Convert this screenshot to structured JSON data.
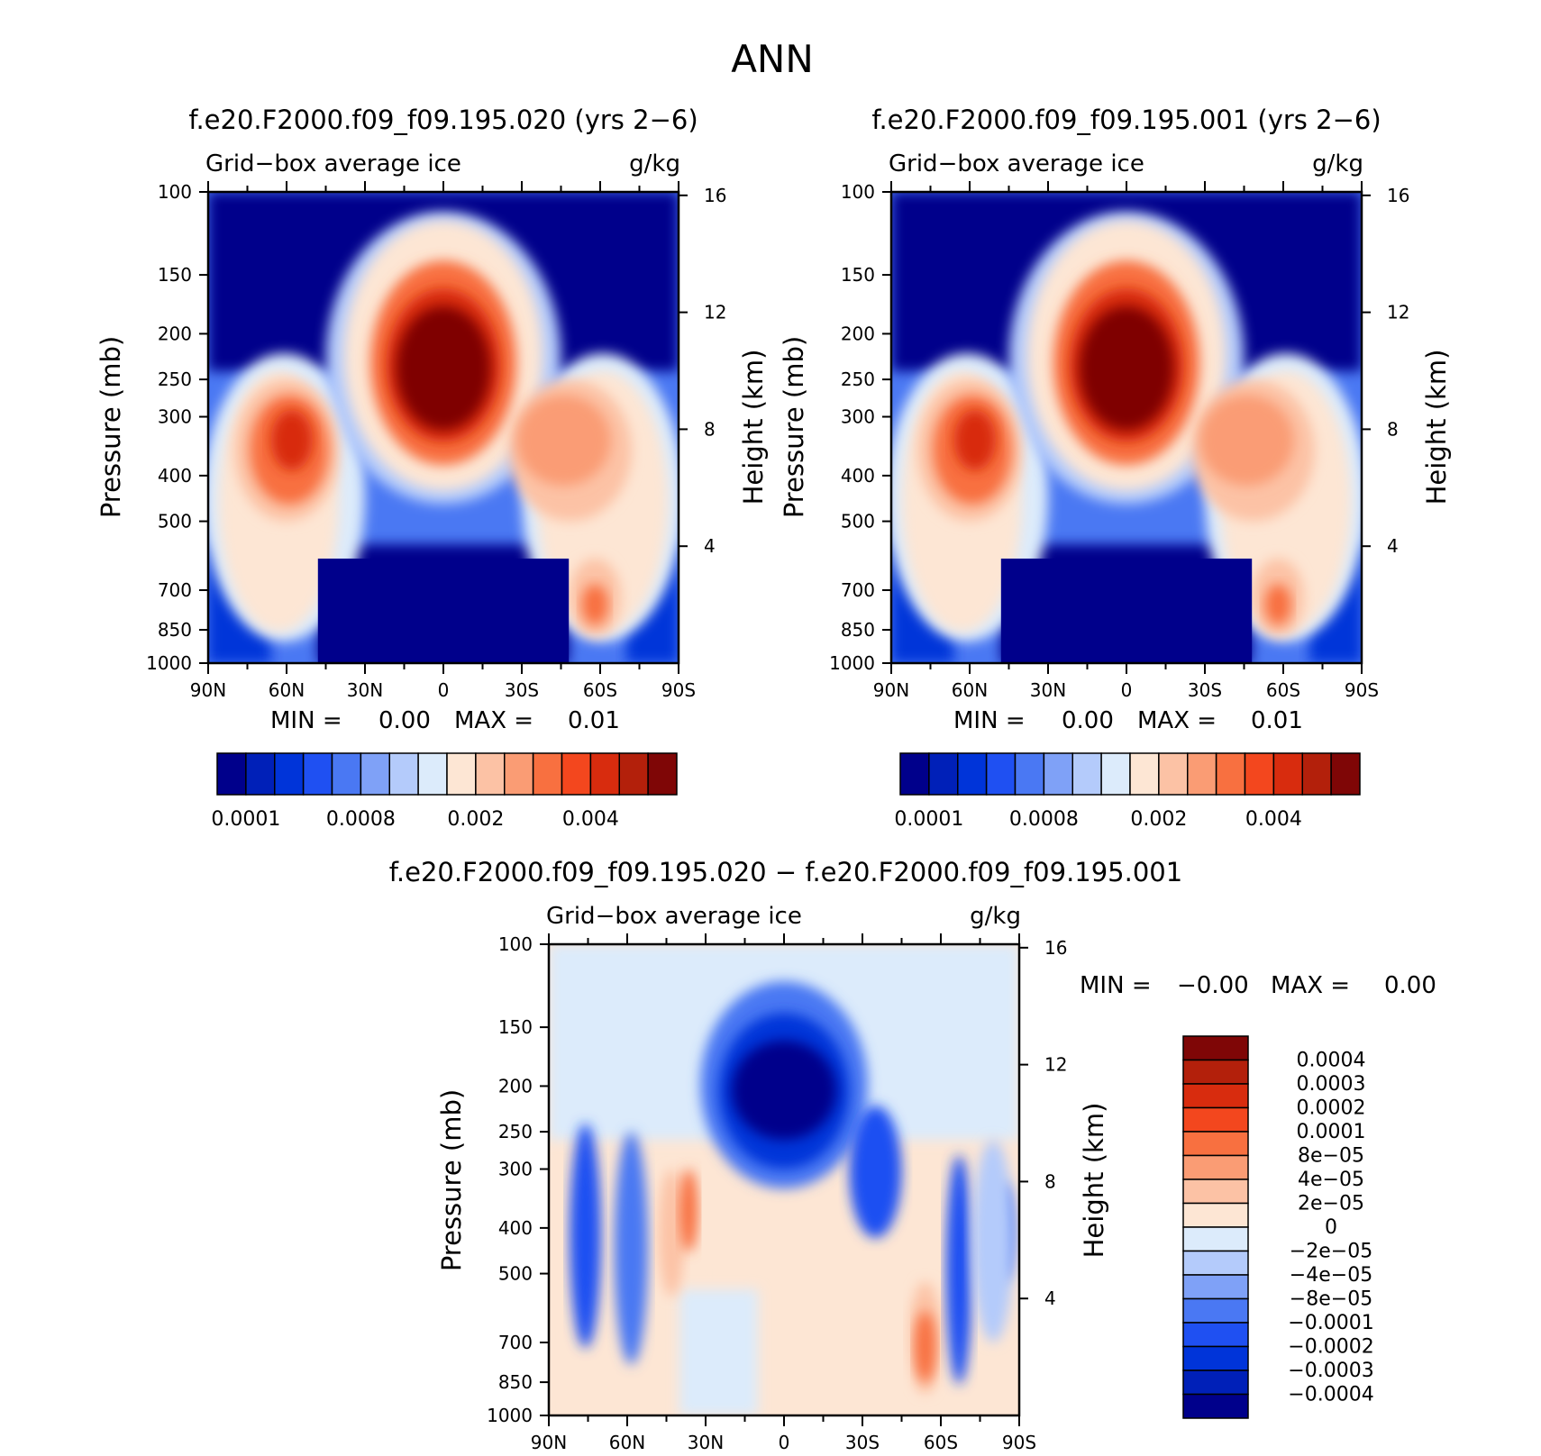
{
  "page_title": "ANN",
  "chart_data": [
    {
      "type": "heatmap",
      "title": "f.e20.F2000.f09_f09.195.020 (yrs 2−6)",
      "subtitle_left": "Grid−box average ice",
      "subtitle_right": "g/kg",
      "ylabel": "Pressure (mb)",
      "ylabel_right": "Height (km)",
      "x_ticks": [
        "90N",
        "60N",
        "30N",
        "0",
        "30S",
        "60S",
        "90S"
      ],
      "x_range": [
        90,
        -90
      ],
      "y_ticks": [
        100,
        150,
        200,
        250,
        300,
        400,
        500,
        700,
        850,
        1000
      ],
      "y_range": [
        100,
        1000
      ],
      "y_scale": "log (reversed)",
      "height_ticks": [
        16,
        12,
        8,
        4
      ],
      "min_max_text": {
        "min_label": "MIN =",
        "min_value": "0.00",
        "max_label": "MAX =",
        "max_value": "0.01"
      },
      "colorbar": {
        "orientation": "horizontal",
        "labels": [
          "0.0001",
          "0.0008",
          "0.002",
          "0.004"
        ],
        "colors": [
          "#00008b",
          "#0020b8",
          "#0034d9",
          "#1f50f2",
          "#4a78f3",
          "#7fa1f7",
          "#b4cbfb",
          "#dcebfb",
          "#fde6d4",
          "#fcc2a5",
          "#fa9c74",
          "#f87040",
          "#f3471e",
          "#d82c0e",
          "#b3200b",
          "#7f0606"
        ]
      },
      "bands": [
        {
          "lat": [
            -90,
            90
          ],
          "p": [
            100,
            1000
          ],
          "color_index": 0
        },
        {
          "lat": [
            90,
            -90
          ],
          "p": [
            220,
            1000
          ],
          "color_index": 3,
          "shape": "high-latitude outflow"
        },
        {
          "lat": [
            80,
            35
          ],
          "p": [
            230,
            870
          ],
          "color_index": 8
        },
        {
          "lat": [
            -35,
            -80
          ],
          "p": [
            240,
            870
          ],
          "color_index": 8
        },
        {
          "lat": [
            30,
            -30
          ],
          "p": [
            115,
            420
          ],
          "color_index": 9
        },
        {
          "lat": [
            75,
            45
          ],
          "p": [
            270,
            480
          ],
          "color_index": 11
        },
        {
          "lat": [
            -25,
            -70
          ],
          "p": [
            270,
            460
          ],
          "color_index": 10
        },
        {
          "lat": [
            20,
            -20
          ],
          "p": [
            170,
            330
          ],
          "color_index": 15
        },
        {
          "lat": [
            -50,
            -70
          ],
          "p": [
            650,
            850
          ],
          "color_index": 10
        }
      ]
    },
    {
      "type": "heatmap",
      "title": "f.e20.F2000.f09_f09.195.001 (yrs 2−6)",
      "subtitle_left": "Grid−box average ice",
      "subtitle_right": "g/kg",
      "ylabel": "Pressure (mb)",
      "ylabel_right": "Height (km)",
      "x_ticks": [
        "90N",
        "60N",
        "30N",
        "0",
        "30S",
        "60S",
        "90S"
      ],
      "x_range": [
        90,
        -90
      ],
      "y_ticks": [
        100,
        150,
        200,
        250,
        300,
        400,
        500,
        700,
        850,
        1000
      ],
      "y_range": [
        100,
        1000
      ],
      "y_scale": "log (reversed)",
      "height_ticks": [
        16,
        12,
        8,
        4
      ],
      "min_max_text": {
        "min_label": "MIN =",
        "min_value": "0.00",
        "max_label": "MAX =",
        "max_value": "0.01"
      },
      "colorbar": {
        "orientation": "horizontal",
        "labels": [
          "0.0001",
          "0.0008",
          "0.002",
          "0.004"
        ],
        "colors": [
          "#00008b",
          "#0020b8",
          "#0034d9",
          "#1f50f2",
          "#4a78f3",
          "#7fa1f7",
          "#b4cbfb",
          "#dcebfb",
          "#fde6d4",
          "#fcc2a5",
          "#fa9c74",
          "#f87040",
          "#f3471e",
          "#d82c0e",
          "#b3200b",
          "#7f0606"
        ]
      }
    },
    {
      "type": "heatmap",
      "title": "f.e20.F2000.f09_f09.195.020 − f.e20.F2000.f09_f09.195.001",
      "subtitle_left": "Grid−box average ice",
      "subtitle_right": "g/kg",
      "ylabel": "Pressure (mb)",
      "ylabel_right": "Height (km)",
      "x_ticks": [
        "90N",
        "60N",
        "30N",
        "0",
        "30S",
        "60S",
        "90S"
      ],
      "x_range": [
        90,
        -90
      ],
      "y_ticks": [
        100,
        150,
        200,
        250,
        300,
        400,
        500,
        700,
        850,
        1000
      ],
      "y_range": [
        100,
        1000
      ],
      "y_scale": "log (reversed)",
      "height_ticks": [
        16,
        12,
        8,
        4
      ],
      "min_max_text": {
        "min_label": "MIN =",
        "min_value": "−0.00",
        "max_label": "MAX =",
        "max_value": "0.00"
      },
      "colorbar": {
        "orientation": "vertical",
        "labels": [
          "0.0004",
          "0.0003",
          "0.0002",
          "0.0001",
          "8e−05",
          "4e−05",
          "2e−05",
          "0",
          "−2e−05",
          "−4e−05",
          "−8e−05",
          "−0.0001",
          "−0.0002",
          "−0.0003",
          "−0.0004"
        ],
        "colors": [
          "#7f0606",
          "#b3200b",
          "#d82c0e",
          "#f3471e",
          "#f87040",
          "#fa9c74",
          "#fcc2a5",
          "#fde6d4",
          "#dcebfb",
          "#b4cbfb",
          "#7fa1f7",
          "#4a78f3",
          "#1f50f2",
          "#0034d9",
          "#0020b8",
          "#00008b"
        ]
      }
    }
  ]
}
